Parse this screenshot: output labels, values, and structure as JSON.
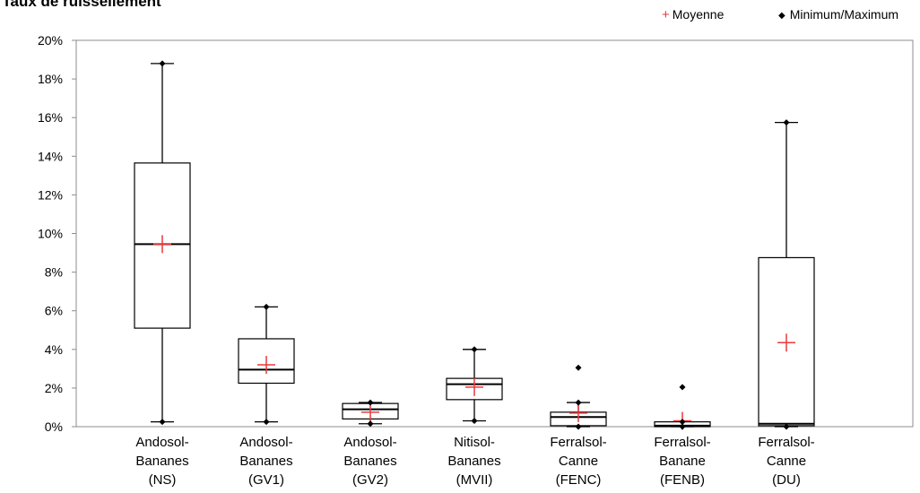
{
  "legend": {
    "mean_label": "Moyenne",
    "minmax_label": "Minimum/Maximum",
    "mean_color": "#e8393c",
    "minmax_color": "#000000"
  },
  "chart_data": {
    "type": "box",
    "title": ") Taux de ruissellement",
    "xlabel": "",
    "ylabel": "",
    "ylim": [
      0,
      20
    ],
    "y_unit": "%",
    "yticks": [
      0,
      2,
      4,
      6,
      8,
      10,
      12,
      14,
      16,
      18,
      20
    ],
    "ytick_labels": [
      "0%",
      "2%",
      "4%",
      "6%",
      "8%",
      "10%",
      "12%",
      "14%",
      "16%",
      "18%",
      "20%"
    ],
    "grid": false,
    "legend_position": "top-right",
    "categories": [
      {
        "lines": [
          "Andosol-",
          "Bananes",
          "(NS)"
        ],
        "min": 0.25,
        "q1": 5.1,
        "median": 9.45,
        "q3": 13.65,
        "whisker_low": 0.25,
        "whisker_high": 18.8,
        "mean": 9.45,
        "outliers": []
      },
      {
        "lines": [
          "Andosol-",
          "Bananes",
          "(GV1)"
        ],
        "min": 0.25,
        "q1": 2.25,
        "median": 2.95,
        "q3": 4.55,
        "whisker_low": 0.25,
        "whisker_high": 6.2,
        "mean": 3.2,
        "outliers": []
      },
      {
        "lines": [
          "Andosol-",
          "Bananes",
          "(GV2)"
        ],
        "min": 0.15,
        "q1": 0.4,
        "median": 0.9,
        "q3": 1.2,
        "whisker_low": 0.15,
        "whisker_high": 1.25,
        "mean": 0.75,
        "outliers": []
      },
      {
        "lines": [
          "Nitisol-",
          "Bananes",
          "(MVII)"
        ],
        "min": 0.3,
        "q1": 1.4,
        "median": 2.2,
        "q3": 2.5,
        "whisker_low": 0.3,
        "whisker_high": 4.0,
        "mean": 2.05,
        "outliers": []
      },
      {
        "lines": [
          "Ferralsol-",
          "Canne",
          "(FENC)"
        ],
        "min": 0.0,
        "q1": 0.05,
        "median": 0.5,
        "q3": 0.75,
        "whisker_low": 0.0,
        "whisker_high": 1.25,
        "mean": 0.7,
        "outliers": [
          3.05
        ]
      },
      {
        "lines": [
          "Ferralsol-",
          "Banane",
          "(FENB)"
        ],
        "min": 0.0,
        "q1": 0.0,
        "median": 0.05,
        "q3": 0.25,
        "whisker_low": 0.0,
        "whisker_high": 0.25,
        "mean": 0.3,
        "outliers": [
          2.05
        ]
      },
      {
        "lines": [
          "Ferralsol-",
          "Canne",
          "(DU)"
        ],
        "min": 0.0,
        "q1": 0.05,
        "median": 0.15,
        "q3": 8.75,
        "whisker_low": 0.0,
        "whisker_high": 15.75,
        "mean": 4.35,
        "outliers": []
      }
    ]
  }
}
